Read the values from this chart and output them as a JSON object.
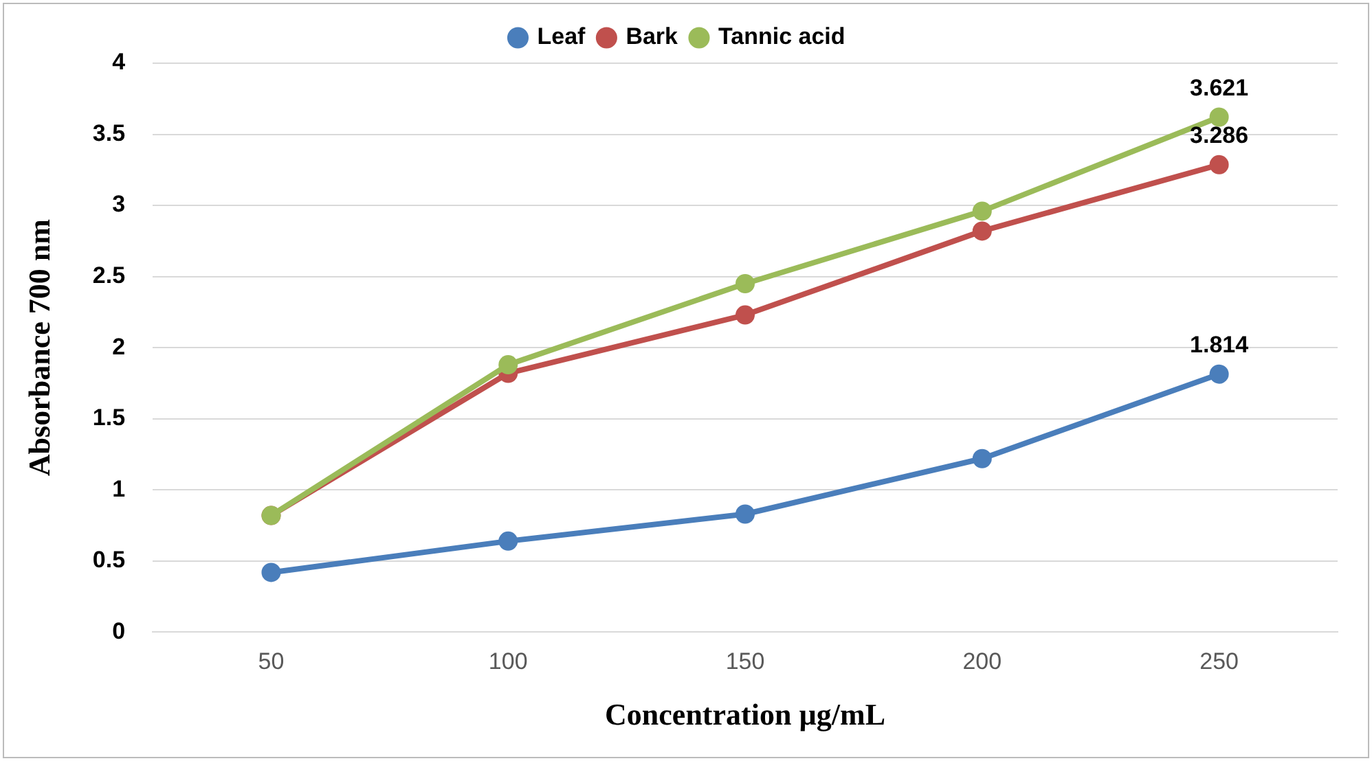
{
  "chart_data": {
    "type": "line",
    "xlabel": "Concentration µg/mL",
    "ylabel": "Absorbance 700 nm",
    "categories": [
      "50",
      "100",
      "150",
      "200",
      "250"
    ],
    "series": [
      {
        "name": "Leaf",
        "color": "#4a7ebb",
        "values": [
          0.42,
          0.64,
          0.83,
          1.22,
          1.814
        ],
        "value_labels": [
          null,
          null,
          null,
          null,
          "1.814"
        ]
      },
      {
        "name": "Bark",
        "color": "#c0504d",
        "values": [
          0.82,
          1.82,
          2.23,
          2.82,
          3.286
        ],
        "value_labels": [
          null,
          null,
          null,
          null,
          "3.286"
        ]
      },
      {
        "name": "Tannic acid",
        "color": "#9bbb59",
        "values": [
          0.82,
          1.88,
          2.45,
          2.96,
          3.621
        ],
        "value_labels": [
          null,
          null,
          null,
          null,
          "3.621"
        ]
      }
    ],
    "ylim": [
      0,
      4
    ],
    "yticks": [
      0,
      0.5,
      1,
      1.5,
      2,
      2.5,
      3,
      3.5,
      4
    ],
    "grid": "y",
    "legend": "top",
    "marker": "circle",
    "line_style": "solid"
  }
}
